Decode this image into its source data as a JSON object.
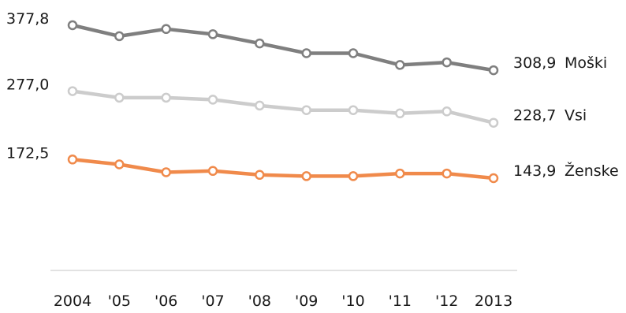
{
  "chart_data": {
    "type": "line",
    "title": "",
    "xlabel": "",
    "ylabel": "",
    "categories": [
      "2004",
      "'05",
      "'06",
      "'07",
      "'08",
      "'09",
      "'10",
      "'11",
      "'12",
      "2013"
    ],
    "ylim": [
      0,
      400
    ],
    "grid": false,
    "legend": "right-end labels",
    "series": [
      {
        "name": "Moški",
        "color": "#7f7f7f",
        "values": [
          377.8,
          361,
          372,
          364,
          350,
          335,
          335,
          317,
          321,
          308.9
        ],
        "start_label": "377,8",
        "end_label": "308,9"
      },
      {
        "name": "Vsi",
        "color": "#cccccc",
        "values": [
          277.0,
          267,
          267,
          264,
          255,
          248,
          248,
          243,
          246,
          228.7
        ],
        "start_label": "277,0",
        "end_label": "228,7"
      },
      {
        "name": "Ženske",
        "color": "#f08a4b",
        "values": [
          172.5,
          165,
          153,
          155,
          149,
          147,
          147,
          151,
          151,
          143.9
        ],
        "start_label": "172,5",
        "end_label": "143,9"
      }
    ]
  }
}
